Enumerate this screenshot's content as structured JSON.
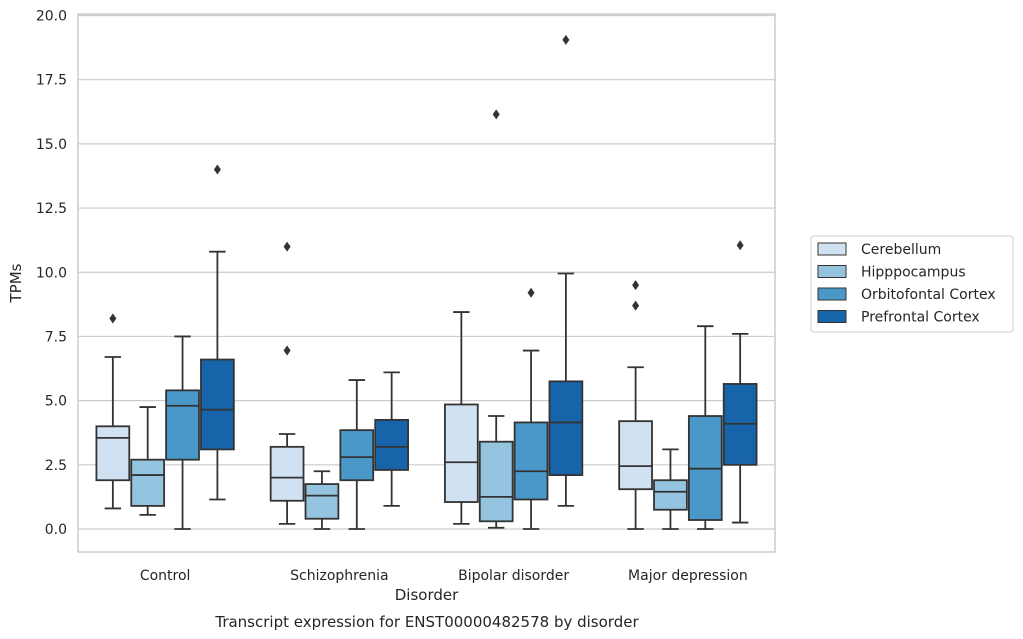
{
  "chart_data": {
    "type": "box",
    "title": "",
    "caption": "Transcript expression for ENST00000482578 by disorder",
    "xlabel": "Disorder",
    "ylabel": "TPMs",
    "ylim": [
      -0.9,
      20.1
    ],
    "yticks": [
      "0.0",
      "2.5",
      "5.0",
      "7.5",
      "10.0",
      "12.5",
      "15.0",
      "17.5",
      "20.0"
    ],
    "ytick_values": [
      0,
      2.5,
      5,
      7.5,
      10,
      12.5,
      15,
      17.5,
      20
    ],
    "grid": true,
    "legend_position": "right",
    "categories": [
      "Control",
      "Schizophrenia",
      "Bipolar disorder",
      "Major depression"
    ],
    "series": [
      {
        "name": "Cerebellum",
        "color": "#d0e1f2",
        "boxes": [
          {
            "whislo": 0.8,
            "q1": 1.9,
            "med": 3.55,
            "q3": 4.0,
            "whishi": 6.7,
            "fliers": [
              8.2
            ]
          },
          {
            "whislo": 0.2,
            "q1": 1.1,
            "med": 2.0,
            "q3": 3.2,
            "whishi": 3.7,
            "fliers": [
              6.95,
              11.0
            ]
          },
          {
            "whislo": 0.2,
            "q1": 1.05,
            "med": 2.6,
            "q3": 4.85,
            "whishi": 8.45,
            "fliers": []
          },
          {
            "whislo": 0.0,
            "q1": 1.55,
            "med": 2.45,
            "q3": 4.2,
            "whishi": 6.3,
            "fliers": [
              8.7,
              9.5
            ]
          }
        ]
      },
      {
        "name": "Hipppocampus",
        "color": "#94c4df",
        "boxes": [
          {
            "whislo": 0.55,
            "q1": 0.9,
            "med": 2.1,
            "q3": 2.7,
            "whishi": 4.75,
            "fliers": []
          },
          {
            "whislo": 0.0,
            "q1": 0.4,
            "med": 1.3,
            "q3": 1.75,
            "whishi": 2.25,
            "fliers": []
          },
          {
            "whislo": 0.05,
            "q1": 0.3,
            "med": 1.25,
            "q3": 3.4,
            "whishi": 4.4,
            "fliers": [
              16.15
            ]
          },
          {
            "whislo": 0.0,
            "q1": 0.75,
            "med": 1.45,
            "q3": 1.9,
            "whishi": 3.1,
            "fliers": []
          }
        ]
      },
      {
        "name": "Orbitofontal Cortex",
        "color": "#4a98c9",
        "boxes": [
          {
            "whislo": 0.0,
            "q1": 2.7,
            "med": 4.8,
            "q3": 5.4,
            "whishi": 7.5,
            "fliers": []
          },
          {
            "whislo": 0.0,
            "q1": 1.9,
            "med": 2.8,
            "q3": 3.85,
            "whishi": 5.8,
            "fliers": []
          },
          {
            "whislo": 0.0,
            "q1": 1.15,
            "med": 2.25,
            "q3": 4.15,
            "whishi": 6.95,
            "fliers": [
              9.2
            ]
          },
          {
            "whislo": 0.0,
            "q1": 0.35,
            "med": 2.35,
            "q3": 4.4,
            "whishi": 7.9,
            "fliers": []
          }
        ]
      },
      {
        "name": "Prefrontal Cortex",
        "color": "#1764ab",
        "boxes": [
          {
            "whislo": 1.15,
            "q1": 3.1,
            "med": 4.65,
            "q3": 6.6,
            "whishi": 10.8,
            "fliers": [
              14.0
            ]
          },
          {
            "whislo": 0.9,
            "q1": 2.3,
            "med": 3.2,
            "q3": 4.25,
            "whishi": 6.1,
            "fliers": []
          },
          {
            "whislo": 0.9,
            "q1": 2.1,
            "med": 4.15,
            "q3": 5.75,
            "whishi": 9.95,
            "fliers": [
              19.05
            ]
          },
          {
            "whislo": 0.25,
            "q1": 2.5,
            "med": 4.1,
            "q3": 5.65,
            "whishi": 7.6,
            "fliers": [
              11.05
            ]
          }
        ]
      }
    ]
  }
}
